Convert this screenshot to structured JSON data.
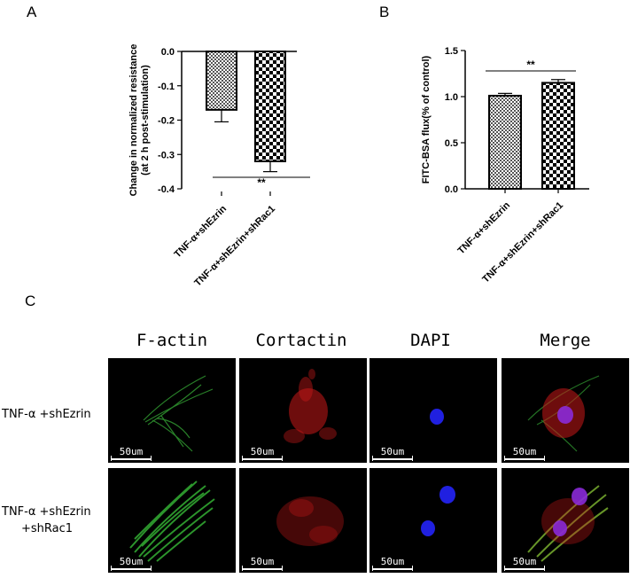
{
  "panels": {
    "a": "A",
    "b": "B",
    "c": "C"
  },
  "chart_data": [
    {
      "type": "bar",
      "categories": [
        "TNF-α+shEzrin",
        "TNF-α+shEzrin+shRac1"
      ],
      "values": [
        -0.17,
        -0.32
      ],
      "errors": [
        0.035,
        0.03
      ],
      "ylabel": "Change in normalized resistance\n(at 2 h post-stimulation)",
      "ylim": [
        -0.4,
        0.0
      ],
      "yticks": [
        "0.0",
        "-0.1",
        "-0.2",
        "-0.3",
        "-0.4"
      ],
      "significance": "**",
      "grid": false
    },
    {
      "type": "bar",
      "categories": [
        "TNF-α+shEzrin",
        "TNF-α+shEzrin+shRac1"
      ],
      "values": [
        1.01,
        1.15
      ],
      "errors": [
        0.025,
        0.035
      ],
      "ylabel": "FITC-BSA flux(% of control)",
      "ylim": [
        0.0,
        1.5
      ],
      "yticks": [
        "0.0",
        "0.5",
        "1.0",
        "1.5"
      ],
      "significance": "**",
      "grid": false
    }
  ],
  "microscopy": {
    "columns": [
      "F-actin",
      "Cortactin",
      "DAPI",
      "Merge"
    ],
    "rows": [
      {
        "label_line1": "TNF-α +shEzrin",
        "label_line2": ""
      },
      {
        "label_line1": "TNF-α +shEzrin",
        "label_line2": "+shRac1"
      }
    ],
    "scale_bar": "50um"
  }
}
